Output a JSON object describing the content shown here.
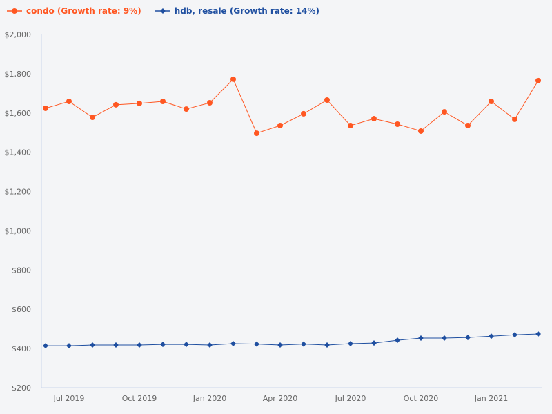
{
  "chart_data": {
    "type": "line",
    "title": "",
    "xlabel": "",
    "ylabel": "",
    "ylim": [
      200,
      2000
    ],
    "yticks": [
      "$200",
      "$400",
      "$600",
      "$800",
      "$1,000",
      "$1,200",
      "$1,400",
      "$1,600",
      "$1,800",
      "$2,000"
    ],
    "ytick_values": [
      200,
      400,
      600,
      800,
      1000,
      1200,
      1400,
      1600,
      1800,
      2000
    ],
    "x": [
      "Jun 2019",
      "Jul 2019",
      "Aug 2019",
      "Sep 2019",
      "Oct 2019",
      "Nov 2019",
      "Dec 2019",
      "Jan 2020",
      "Feb 2020",
      "Mar 2020",
      "Apr 2020",
      "May 2020",
      "Jun 2020",
      "Jul 2020",
      "Aug 2020",
      "Sep 2020",
      "Oct 2020",
      "Nov 2020",
      "Dec 2020",
      "Jan 2021",
      "Feb 2021",
      "Mar 2021"
    ],
    "xticks": [
      {
        "label": "Jul 2019",
        "index": 1
      },
      {
        "label": "Oct 2019",
        "index": 4
      },
      {
        "label": "Jan 2020",
        "index": 7
      },
      {
        "label": "Apr 2020",
        "index": 10
      },
      {
        "label": "Jul 2020",
        "index": 13
      },
      {
        "label": "Oct 2020",
        "index": 16
      },
      {
        "label": "Jan 2021",
        "index": 19
      }
    ],
    "grid": false,
    "legend_placement": "top-left",
    "series": [
      {
        "name": "condo (Growth rate: 9%)",
        "color": "#ff5722",
        "marker": "circle",
        "values": [
          1624,
          1659,
          1578,
          1642,
          1649,
          1659,
          1620,
          1652,
          1772,
          1497,
          1536,
          1596,
          1666,
          1536,
          1571,
          1543,
          1508,
          1606,
          1536,
          1659,
          1568,
          1765
        ]
      },
      {
        "name": "hdb, resale (Growth rate: 14%)",
        "color": "#1f4fa0",
        "marker": "diamond",
        "values": [
          414,
          414,
          418,
          418,
          418,
          421,
          421,
          418,
          425,
          423,
          418,
          423,
          418,
          425,
          428,
          442,
          453,
          453,
          456,
          463,
          470,
          474
        ]
      }
    ]
  }
}
